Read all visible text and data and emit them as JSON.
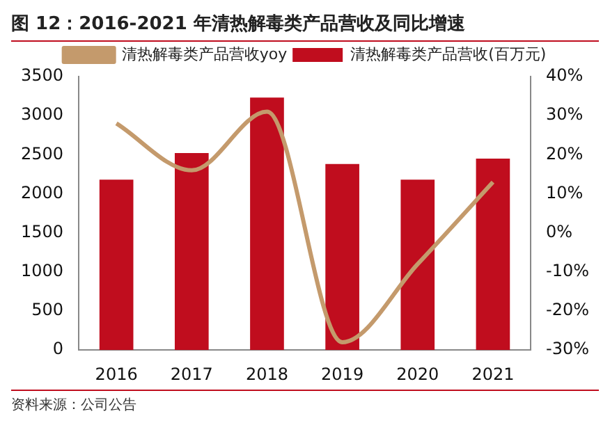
{
  "chart_data": {
    "type": "bar",
    "title": "图 12：2016-2021 年清热解毒类产品营收及同比增速",
    "categories": [
      "2016",
      "2017",
      "2018",
      "2019",
      "2020",
      "2021"
    ],
    "series": [
      {
        "name": "清热解毒类产品营收(百万元)",
        "color": "#c00d1e",
        "values": [
          2180,
          2520,
          3230,
          2380,
          2180,
          2450
        ]
      },
      {
        "name": "清热解毒类产品营收yoy",
        "type": "line",
        "axis": "y2",
        "color": "#c49a6c",
        "values": [
          28,
          16,
          31,
          -28,
          -8,
          13
        ]
      }
    ],
    "ylim": [
      0,
      3500
    ],
    "yticks": [
      0,
      500,
      1000,
      1500,
      2000,
      2500,
      3000,
      3500
    ],
    "y2lim": [
      -30,
      40
    ],
    "y2ticks": [
      {
        "value": -30,
        "label": "-30%"
      },
      {
        "value": -20,
        "label": "-20%"
      },
      {
        "value": -10,
        "label": "-10%"
      },
      {
        "value": 0,
        "label": "0%"
      },
      {
        "value": 10,
        "label": "10%"
      },
      {
        "value": 20,
        "label": "20%"
      },
      {
        "value": 30,
        "label": "30%"
      },
      {
        "value": 40,
        "label": "40%"
      }
    ],
    "grid": false,
    "legend": "top",
    "marker": "none",
    "line_style": "solid",
    "annotations": [
      "资料来源：公司公告"
    ]
  }
}
